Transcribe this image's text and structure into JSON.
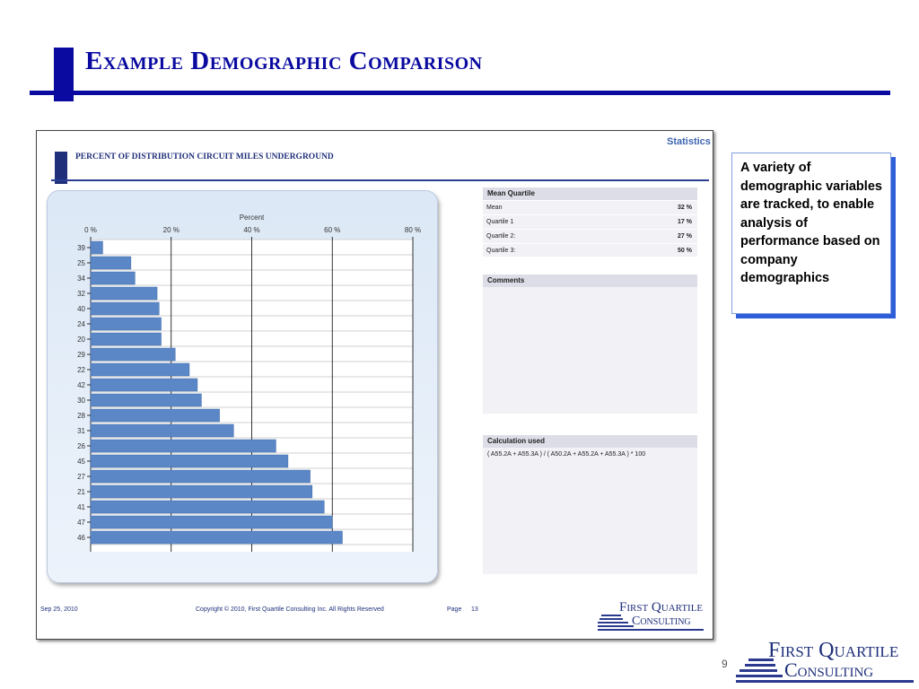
{
  "slide": {
    "title": "Example Demographic Comparison",
    "page_number": "9"
  },
  "report": {
    "header_label": "Statistics",
    "chart_title": "PERCENT OF DISTRIBUTION CIRCUIT MILES UNDERGROUND",
    "mean_quartile": {
      "title": "Mean Quartile",
      "rows": [
        {
          "label": "Mean",
          "value": "32 %"
        },
        {
          "label": "Quartile 1",
          "value": "17 %"
        },
        {
          "label": "Quartile 2:",
          "value": "27 %"
        },
        {
          "label": "Quartile 3:",
          "value": "50 %"
        }
      ]
    },
    "comments_title": "Comments",
    "calculation_title": "Calculation used",
    "calculation_text": "( A55.2A + A55.3A ) / ( A50.2A + A55.2A + A55.3A ) * 100",
    "footer": {
      "date": "Sep 25, 2010",
      "copyright": "Copyright © 2010, First Quartile Consulting Inc. All Rights Reserved",
      "page_label": "Page",
      "page_number": "13"
    }
  },
  "logo": {
    "line1": "First Quartile",
    "line2": "Consulting"
  },
  "callout": {
    "text": "A variety of demographic variables are tracked, to enable analysis of performance based on company demographics"
  },
  "colors": {
    "accent": "#0a0aa0",
    "bar": "#5b87c7",
    "shadow": "#2e5fd8"
  },
  "chart_data": {
    "type": "bar",
    "orientation": "horizontal",
    "xlabel": "Percent",
    "xlim": [
      0,
      80
    ],
    "xticks": [
      "0 %",
      "20 %",
      "40 %",
      "60 %",
      "80 %"
    ],
    "categories": [
      "39",
      "25",
      "34",
      "32",
      "40",
      "24",
      "20",
      "29",
      "22",
      "42",
      "30",
      "28",
      "31",
      "26",
      "45",
      "27",
      "21",
      "41",
      "47",
      "46"
    ],
    "values": [
      3,
      10,
      11,
      16.5,
      17,
      17.5,
      17.5,
      21,
      24.5,
      26.5,
      27.5,
      32,
      35.5,
      46,
      49,
      54.5,
      55,
      58,
      60,
      62.5
    ],
    "grid": true
  }
}
